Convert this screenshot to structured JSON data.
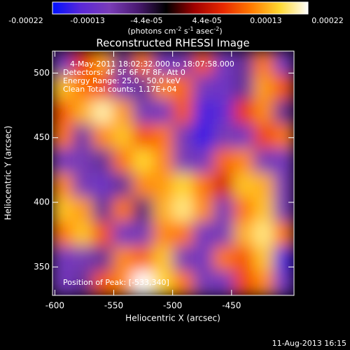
{
  "chart_data": {
    "type": "heatmap",
    "title": "Reconstructed RHESSI Image",
    "x_label": "Heliocentric X (arcsec)",
    "y_label": "Heliocentric Y (arcsec)",
    "colorbar_label": [
      "(photons cm",
      "-2",
      " s",
      "-1",
      " asec",
      "-2",
      ")"
    ],
    "annotations": [
      "4-May-2011 18:02:32.000 to 18:07:58.000",
      "Detectors: 4F 5F 6F 7F 8F, Att 0",
      "Energy Range: 25.0 - 50.0 keV",
      "Clean     Total counts: 1.17E+04"
    ],
    "peak_label": "Position of Peak: [-533,340]",
    "footer": "11-Aug-2013 16:15",
    "xlim": [
      -602,
      -397
    ],
    "ylim": [
      328,
      517
    ],
    "xticks": [
      -600,
      -550,
      -500,
      -450
    ],
    "yticks": [
      350,
      400,
      450,
      500
    ],
    "clim": [
      -0.00022,
      0.00022
    ],
    "cticks": [
      -0.00022,
      -0.00013,
      {
        "value": -4.4e-05,
        "label": "-4.4e-05"
      },
      {
        "value": 4.4e-05,
        "label": "4.4e-05"
      },
      0.00013,
      0.00022
    ],
    "colormap": [
      "#0010ff",
      "#5a28d8",
      "#7a3cb8",
      "#4a1a72",
      "#000000",
      "#a00000",
      "#e82800",
      "#ff7a00",
      "#ffd830",
      "#ffffff"
    ],
    "values": [
      [
        -0.00013,
        8e-05,
        0.00014,
        -0.0001,
        0.00012,
        -0.00013,
        -0.00012,
        0.0001,
        -0.00013,
        -0.0001,
        0.00012,
        -0.00013
      ],
      [
        0.00016,
        0.00012,
        9e-05,
        -0.00012,
        -0.0001,
        0.00013,
        0.00011,
        -0.00013,
        -0.00014,
        -0.0001,
        0.00014,
        0.0001
      ],
      [
        0.0001,
        0.00015,
        0.0002,
        0.00014,
        -0.00012,
        -0.00013,
        0.0001,
        -0.00018,
        -0.00016,
        8e-05,
        0.00013,
        -0.0001
      ],
      [
        0.00012,
        -0.00011,
        0.00013,
        0.00016,
        0.0001,
        0.00012,
        -0.00012,
        -0.00019,
        -0.00012,
        -0.00013,
        9e-05,
        0.00012
      ],
      [
        -0.00013,
        -0.00012,
        -0.0001,
        0.00012,
        0.00017,
        0.00013,
        -0.00012,
        -0.00013,
        0.00011,
        0.00013,
        -0.00012,
        -0.00013
      ],
      [
        0.00013,
        -0.00012,
        -0.00014,
        -0.0001,
        0.00013,
        0.00014,
        0.00017,
        0.00012,
        6e-05,
        0.00016,
        0.00015,
        -0.00012
      ],
      [
        0.00016,
        0.00014,
        -0.0001,
        0.00012,
        -8e-05,
        0.00015,
        0.00019,
        0.00013,
        -0.00012,
        0.00012,
        0.00016,
        -0.00012
      ],
      [
        0.00012,
        0.00016,
        0.0001,
        -0.00013,
        -0.00012,
        0.00013,
        0.00012,
        -0.00013,
        -0.00012,
        0.00015,
        0.00019,
        0.00012
      ],
      [
        -0.00013,
        -0.00012,
        -0.0001,
        0.00013,
        0.00011,
        0.00016,
        -0.00012,
        -0.00013,
        0.00012,
        0.0001,
        0.00016,
        -0.00018
      ],
      [
        -0.00013,
        -0.0001,
        0.0001,
        0.00013,
        0.00022,
        0.00017,
        0.00012,
        -0.00012,
        -0.00013,
        9e-05,
        0.00013,
        -0.00014
      ]
    ]
  }
}
